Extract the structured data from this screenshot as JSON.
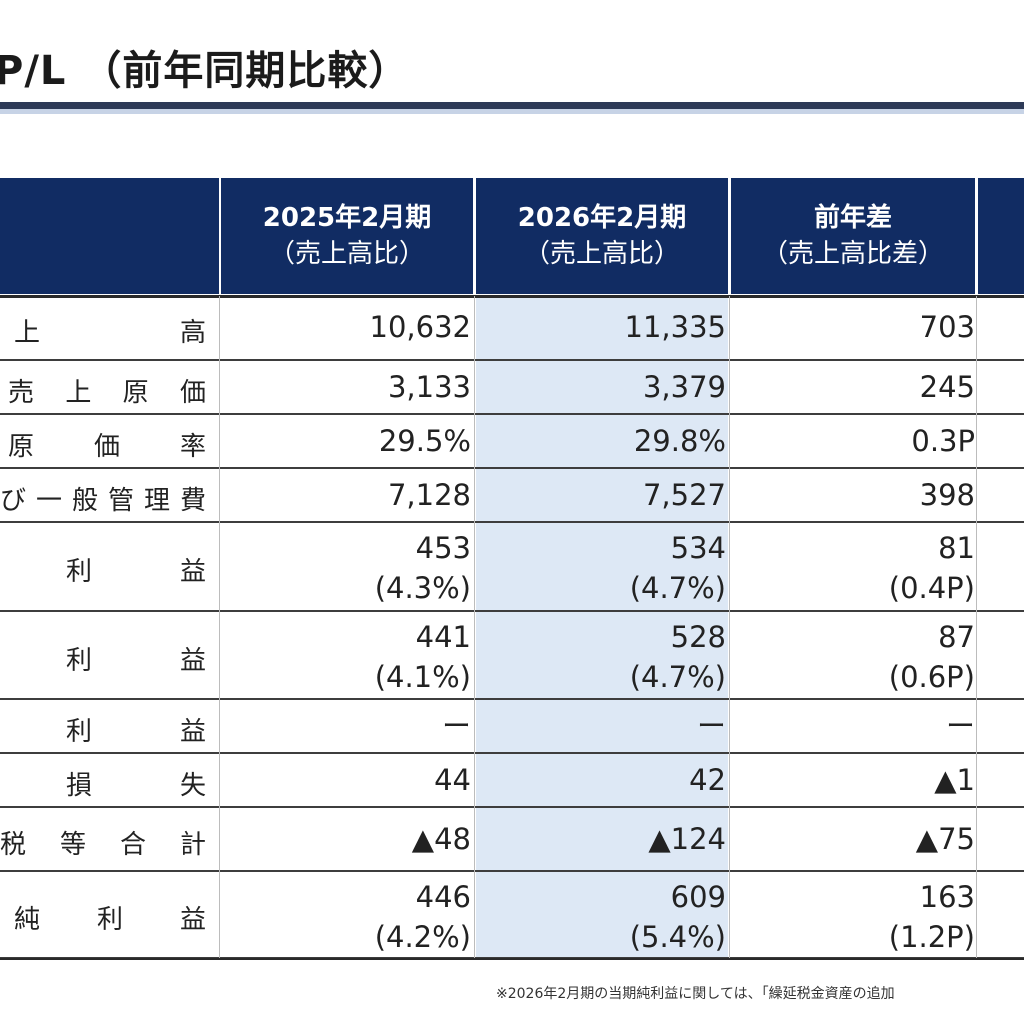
{
  "title": "P/L （前年同期比較）",
  "headers": [
    {
      "line1": "2025年2月期",
      "line2": "（売上高比）"
    },
    {
      "line1": "2026年2月期",
      "line2": "（売上高比）"
    },
    {
      "line1": "前年差",
      "line2": "（売上高比差）"
    }
  ],
  "rows": [
    {
      "label": "上　　　　　高",
      "v1": "10,632",
      "v1b": "",
      "v2": "11,335",
      "v2b": "",
      "v3": "703",
      "v3b": ""
    },
    {
      "label": "売　上　原　価",
      "v1": "3,133",
      "v1b": "",
      "v2": "3,379",
      "v2b": "",
      "v3": "245",
      "v3b": ""
    },
    {
      "label": "原　　価　　率",
      "v1": "29.5%",
      "v1b": "",
      "v2": "29.8%",
      "v2b": "",
      "v3": "0.3P",
      "v3b": ""
    },
    {
      "label": "び一般管理費",
      "v1": "7,128",
      "v1b": "",
      "v2": "7,527",
      "v2b": "",
      "v3": "398",
      "v3b": ""
    },
    {
      "label": "利　　　益",
      "v1": "453",
      "v1b": "(4.3%)",
      "v2": "534",
      "v2b": "(4.7%)",
      "v3": "81",
      "v3b": "(0.4P)"
    },
    {
      "label": "利　　　益",
      "v1": "441",
      "v1b": "(4.1%)",
      "v2": "528",
      "v2b": "(4.7%)",
      "v3": "87",
      "v3b": "(0.6P)"
    },
    {
      "label": "利　　　益",
      "v1": "ー",
      "v1b": "",
      "v2": "ー",
      "v2b": "",
      "v3": "ー",
      "v3b": ""
    },
    {
      "label": "損　　　失",
      "v1": "44",
      "v1b": "",
      "v2": "42",
      "v2b": "",
      "v3": "▲1",
      "v3b": ""
    },
    {
      "label": "税　等　合　計",
      "v1": "▲48",
      "v1b": "",
      "v2": "▲124",
      "v2b": "",
      "v3": "▲75",
      "v3b": ""
    },
    {
      "label": "純　　利　　益",
      "v1": "446",
      "v1b": "(4.2%)",
      "v2": "609",
      "v2b": "(5.4%)",
      "v3": "163",
      "v3b": "(1.2P)"
    }
  ],
  "footnote": "※2026年2月期の当期純利益に関しては、「繰延税金資産の追加",
  "colors": {
    "header_bg": "#112c63",
    "highlight": "#dde8f5",
    "rule": "#2d3a57"
  }
}
